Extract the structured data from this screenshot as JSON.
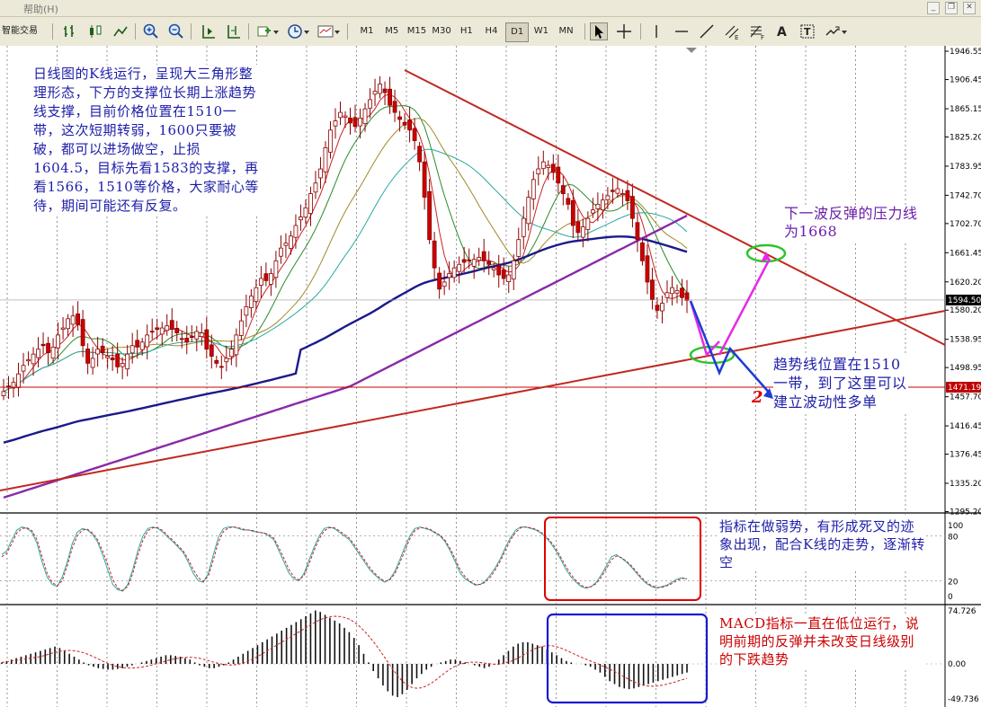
{
  "menu": {
    "help": "帮助",
    "help_key": "(H)"
  },
  "toolbar": {
    "expert_label": "智能交易",
    "timeframes": [
      "M1",
      "M5",
      "M15",
      "M30",
      "H1",
      "H4",
      "D1",
      "W1",
      "MN"
    ],
    "active_timeframe": "D1"
  },
  "price_axis": {
    "labels": [
      "1946.55",
      "1906.45",
      "1865.15",
      "1825.20",
      "1783.95",
      "1742.70",
      "1702.70",
      "1661.45",
      "1620.20",
      "1580.20",
      "1538.95",
      "1498.95",
      "1457.70",
      "1416.45",
      "1376.45",
      "1335.20",
      "1295.20"
    ],
    "current_price": "1594.50",
    "level_price": "1471.19",
    "colors": {
      "current_bg": "#000000",
      "level_bg": "#c00000"
    }
  },
  "stoch_axis": {
    "labels": [
      "100",
      "80",
      "20",
      "0"
    ]
  },
  "macd_axis": {
    "labels": [
      "74.726",
      "0.00",
      "-49.736"
    ]
  },
  "annotations": {
    "main_text": "日线图的K线运行，呈现大三角形整理形态，下方的支撑位长期上涨趋势线支撑，目前价格位置在1510一带，这次短期转弱，1600只要被破，都可以进场做空，止损1604.5，目标先看1583的支撑，再看1566，1510等价格，大家耐心等待，期间可能还有反复。",
    "resistance_text": "下一波反弹的压力线为1668",
    "trendline_text": "趋势线位置在1510一带，到了这里可以建立波动性多单",
    "stoch_text": "指标在做弱势，有形成死叉的迹象出现，配合K线的走势，逐渐转空",
    "macd_text": "MACD指标一直在低位运行，说明前期的反弹并未改变日线级别的下跌趋势",
    "marker": "2"
  },
  "chart_data": [
    {
      "type": "candlestick",
      "panel": "price",
      "ylim": [
        1295.2,
        1946.55
      ],
      "close": [
        1465,
        1472,
        1478,
        1490,
        1502,
        1510,
        1518,
        1525,
        1530,
        1520,
        1528,
        1545,
        1555,
        1568,
        1572,
        1560,
        1530,
        1505,
        1512,
        1525,
        1520,
        1515,
        1510,
        1500,
        1505,
        1518,
        1530,
        1528,
        1535,
        1545,
        1550,
        1553,
        1555,
        1558,
        1553,
        1548,
        1540,
        1535,
        1542,
        1550,
        1548,
        1525,
        1515,
        1505,
        1500,
        1512,
        1525,
        1545,
        1565,
        1585,
        1600,
        1612,
        1625,
        1622,
        1632,
        1650,
        1668,
        1675,
        1685,
        1700,
        1712,
        1725,
        1745,
        1760,
        1780,
        1810,
        1835,
        1848,
        1860,
        1855,
        1845,
        1840,
        1852,
        1865,
        1878,
        1890,
        1900,
        1888,
        1870,
        1860,
        1850,
        1842,
        1835,
        1820,
        1790,
        1740,
        1680,
        1640,
        1610,
        1620,
        1632,
        1640,
        1645,
        1648,
        1650,
        1652,
        1655,
        1650,
        1645,
        1640,
        1630,
        1625,
        1630,
        1650,
        1680,
        1710,
        1740,
        1765,
        1780,
        1790,
        1785,
        1775,
        1760,
        1745,
        1730,
        1700,
        1690,
        1698,
        1710,
        1722,
        1730,
        1736,
        1742,
        1748,
        1752,
        1745,
        1735,
        1710,
        1680,
        1650,
        1620,
        1595,
        1580,
        1590,
        1605,
        1612,
        1608,
        1598,
        1594
      ],
      "series_lines": [
        "MA short (red)",
        "MA (green)",
        "MA (olive)",
        "MA (cyan)",
        "MA long (navy)",
        "MA longest (purple)"
      ]
    },
    {
      "type": "line",
      "panel": "stochastic",
      "ylim": [
        0,
        100
      ],
      "levels": [
        20,
        80
      ],
      "series": [
        {
          "values": [
            55,
            60,
            75,
            88,
            92,
            90,
            85,
            70,
            45,
            25,
            15,
            12,
            25,
            45,
            70,
            85,
            90,
            88,
            82,
            72,
            55,
            35,
            15,
            8,
            6,
            15,
            35,
            60,
            80,
            90,
            92,
            90,
            85,
            78,
            72,
            65,
            58,
            45,
            30,
            20,
            18,
            30,
            55,
            78,
            90,
            92,
            92,
            90,
            88,
            88,
            86,
            85,
            84,
            80,
            75,
            60,
            45,
            30,
            22,
            20,
            30,
            48,
            65,
            80,
            90,
            92,
            90,
            85,
            80,
            75,
            65,
            55,
            45,
            35,
            28,
            22,
            18,
            22,
            32,
            48,
            65,
            80,
            90,
            92,
            90,
            88,
            84,
            80,
            72,
            60,
            45,
            30,
            22,
            18,
            14,
            15,
            20,
            28,
            38,
            50,
            65,
            78,
            88,
            92,
            92,
            90,
            88,
            84,
            78,
            70,
            60,
            48,
            35,
            25,
            18,
            12,
            10,
            12,
            18,
            28,
            40,
            52,
            55,
            50,
            45,
            38,
            30,
            22,
            16,
            12,
            10,
            12,
            14,
            18,
            22,
            24,
            22
          ]
        },
        {
          "values": [
            52,
            57,
            70,
            84,
            90,
            91,
            87,
            75,
            52,
            30,
            18,
            13,
            20,
            40,
            64,
            80,
            88,
            89,
            84,
            75,
            60,
            42,
            22,
            10,
            7,
            12,
            30,
            54,
            74,
            87,
            91,
            91,
            87,
            80,
            74,
            67,
            60,
            49,
            35,
            24,
            19,
            26,
            48,
            72,
            86,
            91,
            92,
            91,
            89,
            88,
            87,
            85,
            84,
            82,
            77,
            64,
            50,
            35,
            25,
            21,
            27,
            43,
            61,
            76,
            87,
            91,
            91,
            87,
            82,
            77,
            68,
            58,
            48,
            38,
            30,
            24,
            19,
            21,
            29,
            44,
            60,
            76,
            87,
            91,
            91,
            89,
            85,
            81,
            74,
            63,
            49,
            34,
            25,
            19,
            15,
            15,
            18,
            25,
            35,
            47,
            61,
            75,
            85,
            91,
            92,
            91,
            89,
            85,
            80,
            72,
            63,
            51,
            39,
            28,
            20,
            14,
            11,
            12,
            16,
            25,
            36,
            48,
            53,
            51,
            46,
            40,
            32,
            24,
            18,
            13,
            11,
            11,
            13,
            16,
            20,
            23,
            23
          ]
        }
      ]
    },
    {
      "type": "bar",
      "panel": "macd",
      "ylim": [
        -49.736,
        74.726
      ],
      "values": [
        2,
        4,
        6,
        8,
        10,
        12,
        14,
        16,
        18,
        20,
        22,
        24,
        22,
        18,
        14,
        10,
        6,
        2,
        -2,
        -4,
        -6,
        -7,
        -8,
        -8,
        -7,
        -6,
        -4,
        -2,
        0,
        2,
        4,
        6,
        8,
        10,
        12,
        12,
        11,
        10,
        8,
        6,
        2,
        -2,
        -4,
        -6,
        -6,
        -4,
        -2,
        2,
        6,
        10,
        14,
        18,
        22,
        26,
        30,
        34,
        38,
        42,
        46,
        50,
        54,
        58,
        62,
        66,
        70,
        74,
        72,
        68,
        64,
        60,
        56,
        50,
        44,
        36,
        26,
        14,
        2,
        -10,
        -20,
        -30,
        -38,
        -44,
        -46,
        -42,
        -36,
        -28,
        -20,
        -14,
        -8,
        -4,
        0,
        2,
        4,
        6,
        6,
        4,
        2,
        0,
        -2,
        -4,
        -6,
        -4,
        0,
        6,
        12,
        18,
        24,
        28,
        30,
        30,
        28,
        26,
        24,
        20,
        16,
        12,
        8,
        4,
        2,
        0,
        0,
        -2,
        -4,
        -8,
        -12,
        -18,
        -24,
        -28,
        -32,
        -34,
        -35,
        -34,
        -32,
        -30,
        -28,
        -26,
        -24,
        -22,
        -20,
        -18,
        -16,
        -14,
        -12
      ],
      "signal_line": "dashed red"
    }
  ]
}
